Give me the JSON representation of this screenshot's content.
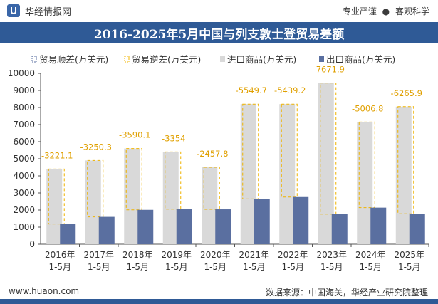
{
  "header": {
    "brand": "华经情报网",
    "slogan_left": "专业严谨",
    "slogan_sep": "●",
    "slogan_right": "客观科学"
  },
  "title": "2016-2025年5月中国与列支敦士登贸易差额",
  "footer": {
    "website": "www.huaon.com",
    "source": "数据来源：中国海关，华经产业研究院整理"
  },
  "colors": {
    "header_bg": "#2f5a96",
    "import_bar": "#d9d9d9",
    "export_bar": "#5a6fa0",
    "diff_outline": "#f0b400"
  },
  "chart_data": {
    "type": "bar",
    "categories": [
      "2016年\n1-5月",
      "2017年\n1-5月",
      "2018年\n1-5月",
      "2019年\n1-5月",
      "2020年\n1-5月",
      "2021年\n1-5月",
      "2022年\n1-5月",
      "2023年\n1-5月",
      "2024年\n1-5月",
      "2025年\n1-5月"
    ],
    "series": [
      {
        "name": "贸易顺差(万美元)",
        "values": [
          0,
          0,
          0,
          0,
          0,
          0,
          0,
          0,
          0,
          0
        ]
      },
      {
        "name": "贸易逆差(万美元)",
        "values": [
          -3221.1,
          -3250.3,
          -3590.1,
          -3354,
          -2457.8,
          -5549.7,
          -5439.2,
          -7671.9,
          -5006.8,
          -6265.9
        ]
      },
      {
        "name": "进口商品(万美元)",
        "values": [
          4400,
          4900,
          5600,
          5400,
          4500,
          8200,
          8200,
          9430,
          7150,
          8050
        ]
      },
      {
        "name": "出口商品(万美元)",
        "values": [
          1180,
          1600,
          2010,
          2050,
          2040,
          2650,
          2760,
          1760,
          2140,
          1780
        ]
      }
    ],
    "data_labels": [
      "-3221.1",
      "-3250.3",
      "-3590.1",
      "-3354",
      "-2457.8",
      "-5549.7",
      "-5439.2",
      "-7671.9",
      "-5006.8",
      "-6265.9"
    ],
    "ylim": [
      0,
      10000
    ],
    "yticks": [
      0,
      1000,
      2000,
      3000,
      4000,
      5000,
      6000,
      7000,
      8000,
      9000,
      10000
    ],
    "grid": false,
    "legend_position": "top"
  }
}
